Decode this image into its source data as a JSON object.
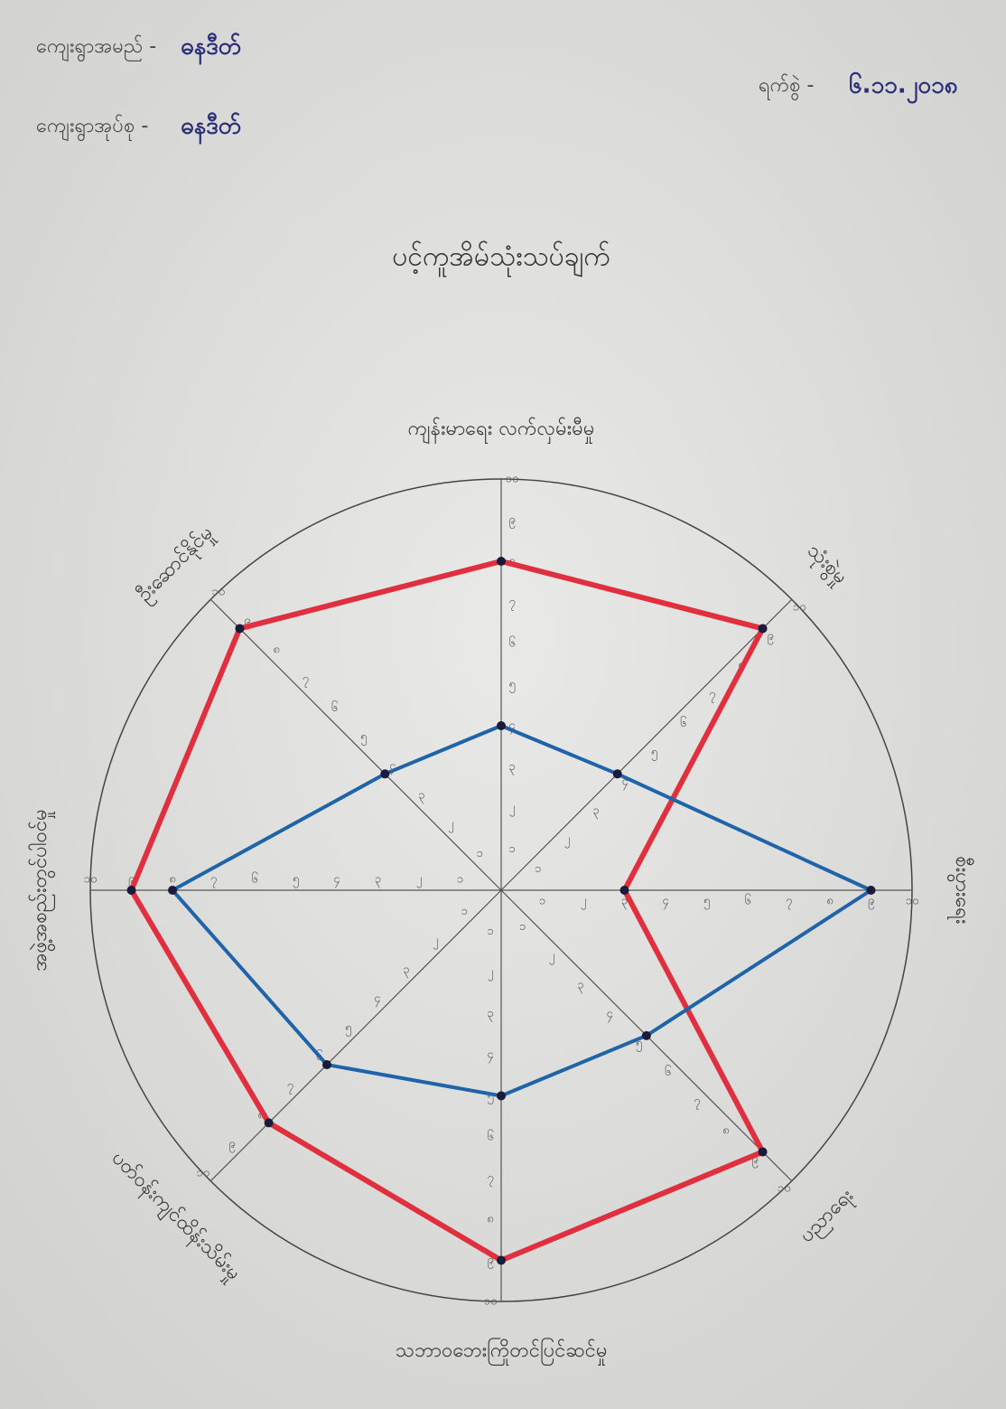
{
  "chart_data": {
    "type": "radar",
    "title": "ပင့်ကူအိမ်သုံးသပ်ချက်",
    "annotations": [
      {
        "label": "ကျေးရွာအမည် -",
        "value": "ဓနဒီတ်"
      },
      {
        "label": "ကျေးရွာအုပ်စု -",
        "value": "ဓနဒီတ်"
      },
      {
        "label": "ရက်စွဲ -",
        "value": "၆.၁၁.၂၀၁၈"
      }
    ],
    "categories": [
      "ကျန်းမာရေး လက်လှမ်းမီမှု",
      "သုံးစွဲမှု",
      "စီးပွားရေး",
      "ပညာရေး",
      "သဘာဝဘေးကြိုတင်ပြင်ဆင်မှု",
      "ပတ်ဝန်းကျင်ထိန်းသိမ်းမှု",
      "အဖွဲ့အစည်းတွင်ပါဝင်မှု",
      "ဦးဆောင်နိုင်မှု"
    ],
    "series": [
      {
        "color": "#e0303f",
        "values": [
          8,
          9,
          3,
          9,
          9,
          8,
          9,
          9
        ]
      },
      {
        "color": "#1f63a8",
        "values": [
          4,
          4,
          9,
          5,
          5,
          6,
          8,
          4
        ]
      }
    ],
    "rlim": [
      0,
      10
    ],
    "rticks": [
      {
        "value": 1,
        "label": "၁"
      },
      {
        "value": 2,
        "label": "၂"
      },
      {
        "value": 3,
        "label": "၃"
      },
      {
        "value": 4,
        "label": "၄"
      },
      {
        "value": 5,
        "label": "၅"
      },
      {
        "value": 6,
        "label": "၆"
      },
      {
        "value": 7,
        "label": "၇"
      },
      {
        "value": 8,
        "label": "၈"
      },
      {
        "value": 9,
        "label": "၉"
      },
      {
        "value": 10,
        "label": "၁၀"
      }
    ]
  }
}
